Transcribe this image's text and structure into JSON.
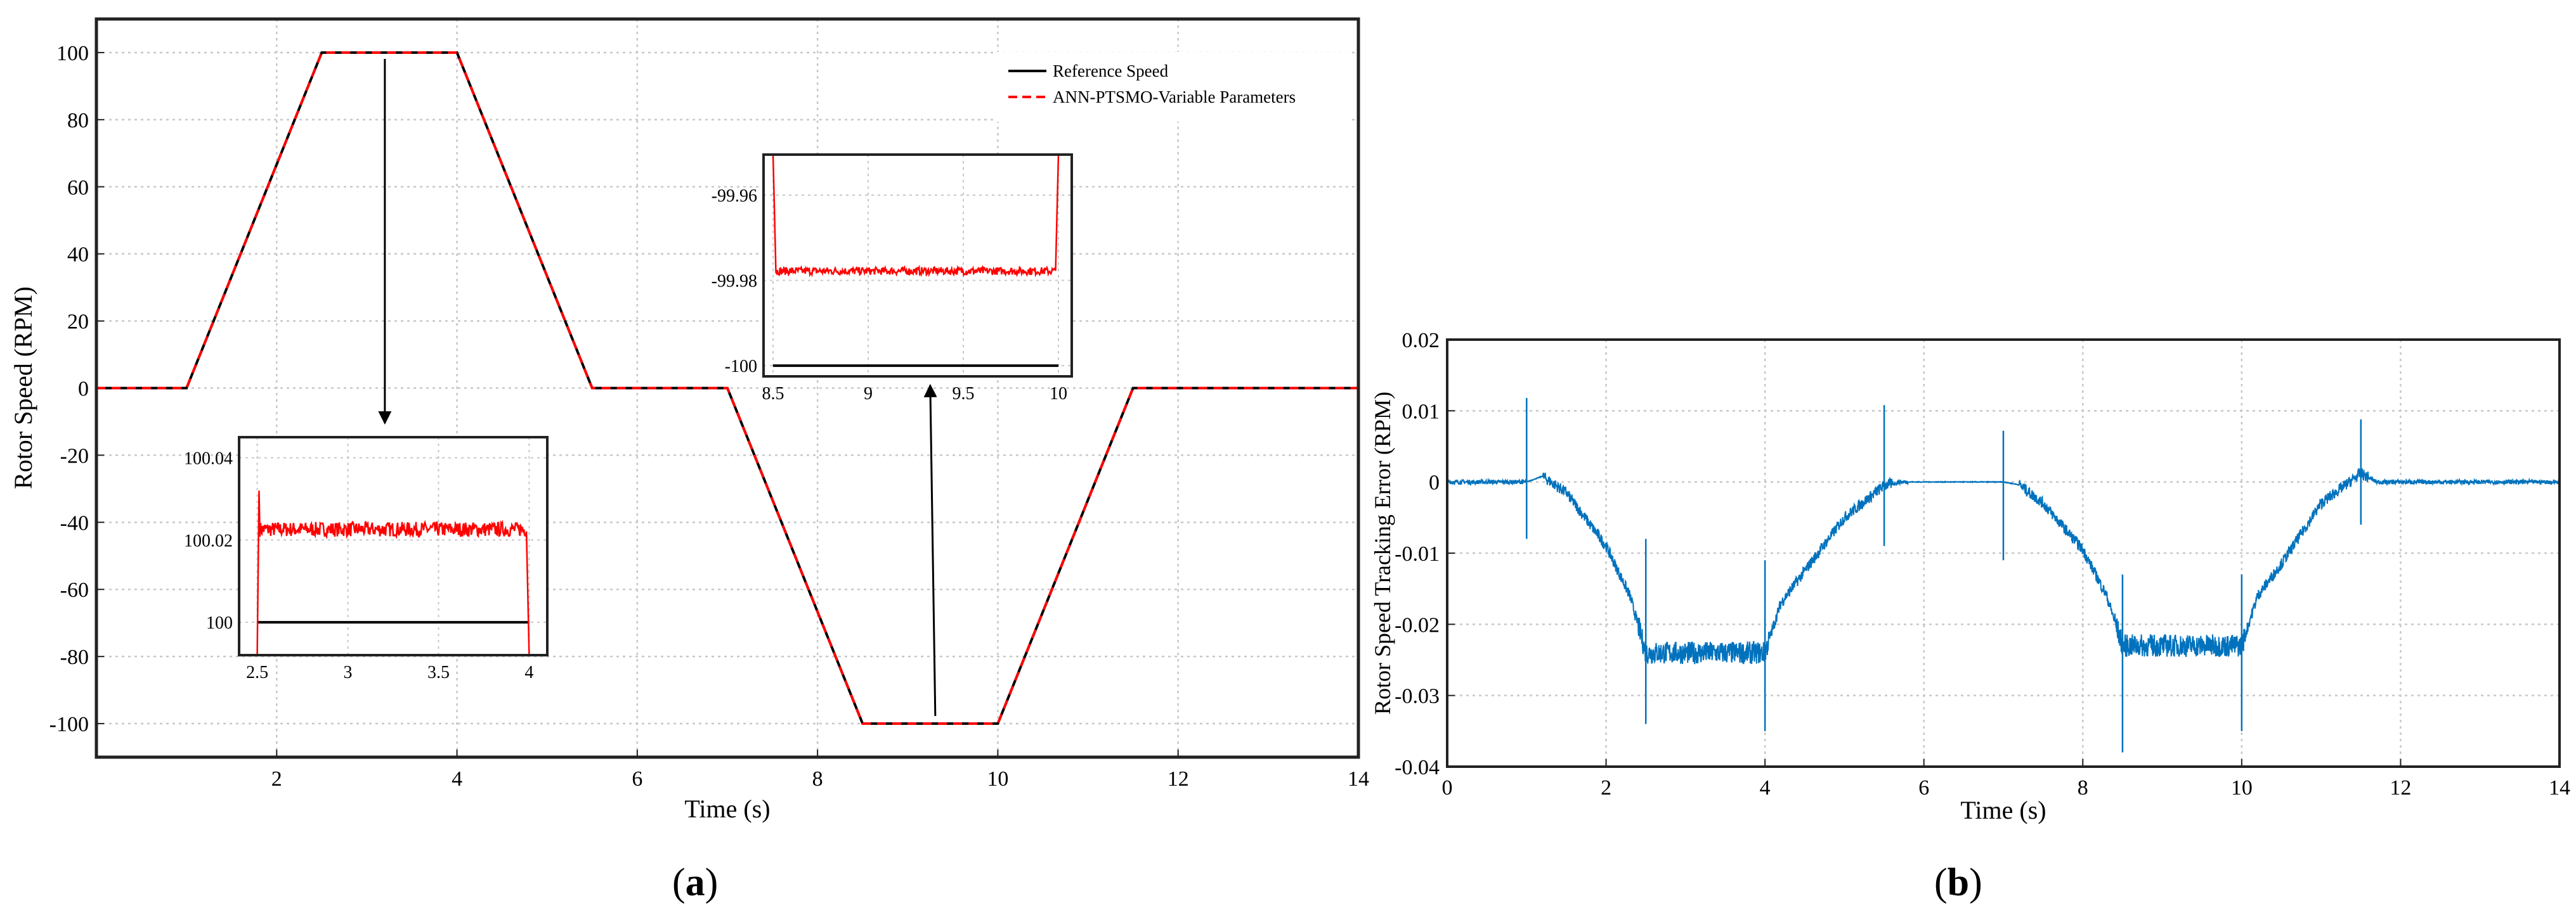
{
  "chart_data": [
    {
      "panel": "(a)",
      "panel_label_letter": "a",
      "type": "line",
      "xlabel": "Time (s)",
      "ylabel": "Rotor Speed (RPM)",
      "xlim": [
        0,
        14
      ],
      "ylim": [
        -110,
        110
      ],
      "x_ticks": [
        2,
        4,
        6,
        8,
        10,
        12,
        14
      ],
      "y_ticks": [
        -100,
        -80,
        -60,
        -40,
        -20,
        0,
        20,
        40,
        60,
        80,
        100
      ],
      "grid": true,
      "legend_position": "top-right",
      "series": [
        {
          "name": "Reference Speed",
          "color": "#000000",
          "style": "solid",
          "x": [
            0,
            1,
            2.5,
            4,
            5.5,
            7,
            8.5,
            10,
            11.5,
            14
          ],
          "y": [
            0,
            0,
            100,
            100,
            0,
            0,
            -100,
            -100,
            0,
            0
          ]
        },
        {
          "name": "ANN-PTSMO-Variable Parameters",
          "color": "#ff0000",
          "style": "dashed",
          "x": [
            0,
            1,
            2.5,
            4,
            5.5,
            7,
            8.5,
            10,
            11.5,
            14
          ],
          "y": [
            0,
            0,
            100,
            100,
            0,
            0,
            -100,
            -100,
            0,
            0
          ]
        }
      ],
      "insets": [
        {
          "xlim": [
            2.4,
            4.1
          ],
          "ylim": [
            99.992,
            100.045
          ],
          "x_ticks": [
            "2.5",
            "3",
            "3.5",
            "4"
          ],
          "y_ticks": [
            "100",
            "100.02",
            "100.04"
          ],
          "reference_y": 100,
          "estimate_mean_y": 100.0226,
          "estimate_noise": 0.0018,
          "span": [
            2.5,
            4
          ],
          "overshoot_y": 100.032,
          "zoom_target": [
            3.2,
            100
          ]
        },
        {
          "xlim": [
            8.45,
            10.07
          ],
          "ylim": [
            -100.0025,
            -99.9505
          ],
          "x_ticks": [
            "8.5",
            "9",
            "9.5",
            "10"
          ],
          "y_ticks": [
            "-99.96",
            "-99.98",
            "-100"
          ],
          "reference_y": -100,
          "estimate_mean_y": -99.9778,
          "estimate_noise": 0.0009,
          "span": [
            8.5,
            10
          ],
          "zoom_target": [
            9.25,
            -100
          ]
        }
      ]
    },
    {
      "panel": "(b)",
      "panel_label_letter": "b",
      "type": "line",
      "xlabel": "Time (s)",
      "ylabel": "Rotor Speed Tracking Error (RPM)",
      "xlim": [
        0,
        14
      ],
      "ylim": [
        -0.04,
        0.02
      ],
      "x_ticks": [
        0,
        2,
        4,
        6,
        8,
        10,
        12,
        14
      ],
      "y_ticks": [
        0.02,
        0.01,
        0,
        -0.01,
        -0.02,
        -0.03,
        -0.04
      ],
      "grid": true,
      "series": [
        {
          "color": "#0072bd",
          "x": [
            0,
            1,
            1.2,
            1.5,
            2.0,
            2.3,
            2.5,
            3.25,
            4,
            4.2,
            4.5,
            5.0,
            5.5,
            5.7,
            7,
            7.2,
            7.5,
            8.0,
            8.3,
            8.5,
            9.25,
            10,
            10.2,
            10.5,
            11.0,
            11.5,
            11.7,
            14
          ],
          "y": [
            0,
            0,
            0.0008,
            -0.0015,
            -0.009,
            -0.016,
            -0.024,
            -0.024,
            -0.024,
            -0.017,
            -0.0125,
            -0.005,
            -0.0005,
            0,
            0,
            -0.0004,
            -0.003,
            -0.0095,
            -0.016,
            -0.023,
            -0.023,
            -0.023,
            -0.016,
            -0.0115,
            -0.003,
            0.0012,
            0,
            0
          ]
        }
      ],
      "spikes": [
        {
          "x": 1.0,
          "y": [
            -0.008,
            0.0118
          ]
        },
        {
          "x": 2.5,
          "y": [
            -0.034,
            -0.008
          ]
        },
        {
          "x": 4.0,
          "y": [
            -0.035,
            -0.011
          ]
        },
        {
          "x": 5.5,
          "y": [
            -0.009,
            0.0108
          ]
        },
        {
          "x": 7.0,
          "y": [
            -0.011,
            0.0072
          ]
        },
        {
          "x": 8.5,
          "y": [
            -0.038,
            -0.013
          ]
        },
        {
          "x": 10.0,
          "y": [
            -0.035,
            -0.013
          ]
        },
        {
          "x": 11.5,
          "y": [
            -0.006,
            0.0088
          ]
        }
      ]
    }
  ]
}
